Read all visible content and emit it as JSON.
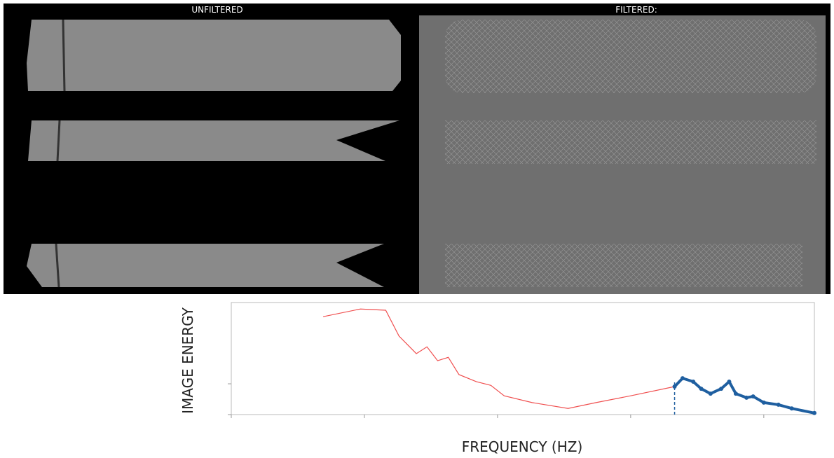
{
  "panels": {
    "left_title": "UNFILTERED",
    "right_title": "FILTERED:"
  },
  "chart_data": {
    "type": "line",
    "y_label": "IMAGE ENERGY",
    "x_label": "FREQUENCY (HZ)",
    "xlim": [
      0,
      4.38
    ],
    "xticks": [
      0,
      1,
      2,
      3,
      4
    ],
    "ylim": [
      0,
      3.64
    ],
    "yticks": [
      0,
      1
    ],
    "vlines": [
      3.33
    ],
    "series": [
      {
        "name": null,
        "color": "#f05050",
        "x": [
          0.69,
          0.97,
          1.16,
          1.26,
          1.39,
          1.47,
          1.55,
          1.63,
          1.71,
          1.84,
          1.95,
          2.05,
          2.26,
          2.53,
          2.74,
          3.0,
          3.33
        ],
        "values": [
          3.18,
          3.43,
          3.39,
          2.55,
          1.98,
          2.2,
          1.75,
          1.86,
          1.3,
          1.07,
          0.95,
          0.61,
          0.39,
          0.2,
          0.39,
          0.61,
          0.91
        ]
      },
      {
        "name": null,
        "color": "#1f5fa0",
        "x": [
          3.33,
          3.39,
          3.47,
          3.53,
          3.6,
          3.68,
          3.74,
          3.79,
          3.87,
          3.92,
          4.0,
          4.11,
          4.21,
          4.38
        ],
        "values": [
          0.91,
          1.18,
          1.07,
          0.84,
          0.68,
          0.84,
          1.07,
          0.68,
          0.55,
          0.59,
          0.39,
          0.32,
          0.2,
          0.05
        ]
      }
    ]
  }
}
